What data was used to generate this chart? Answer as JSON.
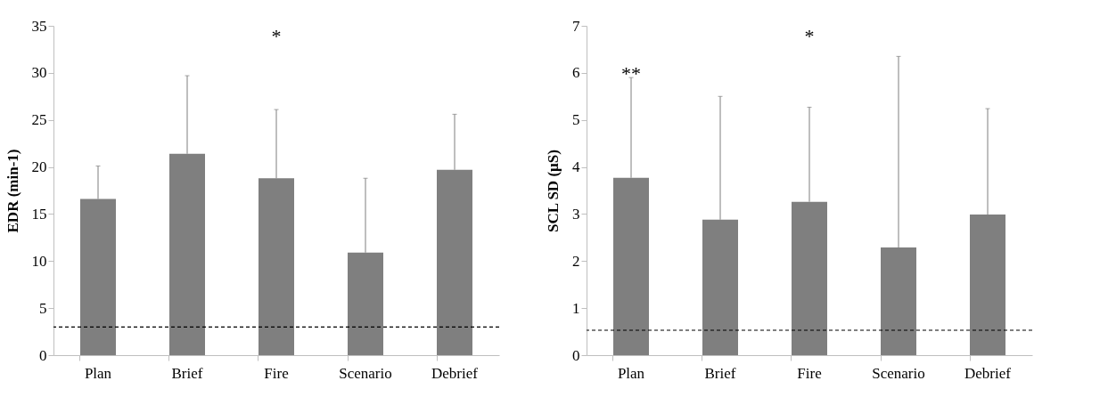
{
  "chart_data": [
    {
      "type": "bar",
      "ylabel": "EDR (min-1)",
      "categories": [
        "Plan",
        "Brief",
        "Fire",
        "Scenario",
        "Debrief"
      ],
      "color": "#7f7f7f",
      "values": [
        16.6,
        21.4,
        18.8,
        10.9,
        19.7
      ],
      "errors": [
        [
          16.6,
          20.1
        ],
        [
          21.4,
          29.7
        ],
        [
          18.8,
          26.1
        ],
        [
          10.9,
          18.8
        ],
        [
          19.7,
          25.6
        ]
      ],
      "ylim": [
        0,
        35
      ],
      "yticks": [
        0,
        5,
        10,
        15,
        20,
        25,
        30,
        35
      ],
      "ref_lines": [
        {
          "axis": "y",
          "value": 3,
          "line_style": "dashed",
          "color": "#000000"
        }
      ],
      "annotations": [
        "*"
      ]
    },
    {
      "type": "bar",
      "ylabel": "SCL SD (µS)",
      "categories": [
        "Plan",
        "Brief",
        "Fire",
        "Scenario",
        "Debrief"
      ],
      "color": "#7f7f7f",
      "values": [
        3.77,
        2.88,
        3.26,
        2.29,
        2.99
      ],
      "errors": [
        [
          3.77,
          5.9
        ],
        [
          2.88,
          5.5
        ],
        [
          3.26,
          5.27
        ],
        [
          2.29,
          6.35
        ],
        [
          2.99,
          5.24
        ]
      ],
      "ylim": [
        0,
        7
      ],
      "yticks": [
        0,
        1,
        2,
        3,
        4,
        5,
        6,
        7
      ],
      "ref_lines": [
        {
          "axis": "y",
          "value": 0.53,
          "line_style": "dashed",
          "color": "#000000"
        }
      ],
      "annotations": [
        {
          "text": "**",
          "x": "Plan",
          "y": 5.9
        },
        "*"
      ]
    }
  ]
}
